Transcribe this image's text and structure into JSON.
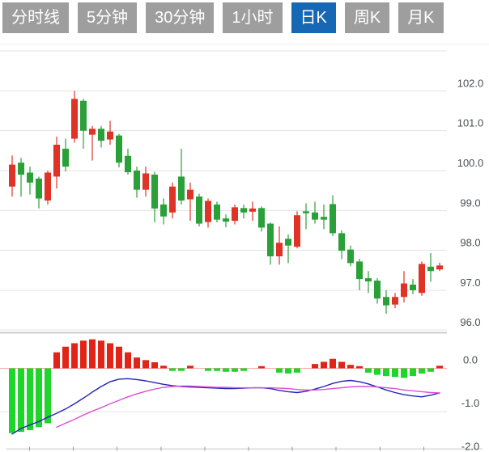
{
  "toolbar": {
    "tabs": [
      {
        "label": "分时线",
        "active": false
      },
      {
        "label": "5分钟",
        "active": false
      },
      {
        "label": "30分钟",
        "active": false
      },
      {
        "label": "1小时",
        "active": false
      },
      {
        "label": "日K",
        "active": true
      },
      {
        "label": "周K",
        "active": false
      },
      {
        "label": "月K",
        "active": false
      }
    ]
  },
  "colors": {
    "up": "#df3327",
    "down": "#2aa038",
    "macd_up": "#e22418",
    "macd_down": "#1fd42a",
    "dif_line": "#2424b4",
    "dea_line": "#d94fd4",
    "tab_bg": "#9e9e9e",
    "tab_active_bg": "#1668b5",
    "tab_text": "#ffffff",
    "grid": "#e3e3e3",
    "pane_border": "#cccccc",
    "zero_line": "#f2aba6",
    "axis_text": "#4a4f54",
    "tick": "#9a9a9a",
    "baseline": "#d9d9d9"
  },
  "chart_data": {
    "type": "candlestick+macd",
    "panes": [
      "daily-candlesticks",
      "macd-indicator"
    ],
    "price_axis": {
      "labels": [
        "102.0",
        "101.0",
        "100.0",
        "99.0",
        "98.0",
        "97.0",
        "96.0"
      ],
      "label_values": [
        102,
        101,
        100,
        99,
        98,
        97,
        96
      ],
      "grid_values": [
        103,
        102,
        101,
        100,
        99,
        98,
        97,
        96
      ],
      "min": 95.8,
      "max": 103.2,
      "position": "right",
      "grid": "on"
    },
    "macd_axis": {
      "labels": [
        "0.0",
        "-1.0",
        "-2.0"
      ],
      "label_values": [
        0,
        -1,
        -2
      ],
      "min": -2.0,
      "max": 0.8,
      "position": "right",
      "grid": "on"
    },
    "candles_ohlc": [
      [
        99.6,
        100.38,
        99.35,
        100.15
      ],
      [
        100.2,
        100.32,
        99.35,
        99.9
      ],
      [
        99.95,
        100.1,
        99.4,
        99.7
      ],
      [
        99.8,
        99.85,
        99.05,
        99.3
      ],
      [
        99.25,
        100.0,
        99.15,
        99.95
      ],
      [
        99.85,
        100.85,
        99.55,
        100.65
      ],
      [
        100.55,
        100.8,
        99.98,
        100.1
      ],
      [
        100.8,
        102.0,
        100.7,
        101.8
      ],
      [
        101.75,
        101.8,
        100.55,
        101.0
      ],
      [
        100.9,
        101.12,
        100.25,
        101.05
      ],
      [
        101.05,
        101.12,
        100.58,
        100.75
      ],
      [
        100.78,
        101.25,
        100.65,
        100.98
      ],
      [
        100.88,
        100.92,
        100.08,
        100.2
      ],
      [
        100.37,
        100.55,
        99.9,
        99.96
      ],
      [
        100.0,
        100.1,
        99.32,
        99.52
      ],
      [
        99.52,
        100.1,
        99.35,
        99.93
      ],
      [
        99.9,
        99.97,
        98.7,
        99.05
      ],
      [
        99.15,
        99.3,
        98.65,
        98.85
      ],
      [
        98.95,
        99.7,
        98.8,
        99.6
      ],
      [
        99.85,
        100.55,
        99.15,
        99.25
      ],
      [
        99.28,
        99.7,
        98.74,
        99.52
      ],
      [
        99.35,
        99.42,
        98.6,
        98.67
      ],
      [
        98.71,
        99.3,
        98.57,
        99.24
      ],
      [
        99.15,
        99.22,
        98.7,
        98.77
      ],
      [
        98.8,
        98.9,
        98.58,
        98.72
      ],
      [
        98.74,
        99.15,
        98.65,
        99.08
      ],
      [
        99.06,
        99.15,
        98.8,
        98.95
      ],
      [
        98.97,
        99.22,
        98.74,
        99.05
      ],
      [
        99.06,
        99.1,
        98.47,
        98.57
      ],
      [
        98.67,
        98.7,
        97.64,
        97.85
      ],
      [
        97.85,
        98.6,
        97.64,
        98.19
      ],
      [
        98.29,
        98.4,
        97.68,
        98.12
      ],
      [
        98.09,
        98.98,
        98.05,
        98.88
      ],
      [
        98.98,
        99.18,
        98.53,
        98.93
      ],
      [
        98.95,
        99.22,
        98.67,
        98.77
      ],
      [
        98.84,
        99.15,
        98.53,
        98.77
      ],
      [
        99.16,
        99.38,
        98.36,
        98.43
      ],
      [
        98.43,
        98.5,
        97.78,
        97.99
      ],
      [
        98.02,
        98.12,
        97.6,
        97.68
      ],
      [
        97.72,
        97.79,
        97.0,
        97.28
      ],
      [
        97.3,
        97.48,
        96.93,
        97.22
      ],
      [
        97.24,
        97.3,
        96.66,
        96.79
      ],
      [
        96.83,
        97.0,
        96.41,
        96.62
      ],
      [
        96.64,
        96.93,
        96.55,
        96.83
      ],
      [
        96.83,
        97.48,
        96.69,
        97.17
      ],
      [
        97.14,
        97.28,
        96.9,
        97.0
      ],
      [
        96.93,
        97.72,
        96.86,
        97.66
      ],
      [
        97.59,
        97.93,
        97.21,
        97.48
      ],
      [
        97.52,
        97.69,
        97.48,
        97.62
      ]
    ],
    "macd": {
      "histogram": [
        -1.5,
        -1.47,
        -1.43,
        -1.36,
        -1.27,
        0.37,
        0.5,
        0.58,
        0.64,
        0.67,
        0.64,
        0.58,
        0.5,
        0.37,
        0.25,
        0.19,
        0.14,
        0.06,
        -0.06,
        -0.06,
        0.06,
        0.0,
        -0.06,
        -0.06,
        -0.08,
        -0.08,
        -0.06,
        0.0,
        0.05,
        0.0,
        -0.1,
        -0.12,
        -0.1,
        0.0,
        0.1,
        0.15,
        0.22,
        0.15,
        0.08,
        0.05,
        -0.1,
        -0.15,
        -0.18,
        -0.2,
        -0.22,
        -0.18,
        -0.12,
        -0.08,
        0.06
      ],
      "dif": [
        -1.52,
        -1.39,
        -1.31,
        -1.23,
        -1.13,
        -1.04,
        -0.94,
        -0.82,
        -0.69,
        -0.55,
        -0.42,
        -0.31,
        -0.25,
        -0.24,
        -0.26,
        -0.29,
        -0.33,
        -0.37,
        -0.4,
        -0.42,
        -0.43,
        -0.44,
        -0.45,
        -0.46,
        -0.47,
        -0.47,
        -0.46,
        -0.45,
        -0.45,
        -0.47,
        -0.51,
        -0.54,
        -0.56,
        -0.53,
        -0.48,
        -0.42,
        -0.35,
        -0.3,
        -0.28,
        -0.31,
        -0.36,
        -0.43,
        -0.5,
        -0.56,
        -0.61,
        -0.64,
        -0.66,
        -0.62,
        -0.57
      ],
      "dea": [
        null,
        null,
        null,
        null,
        null,
        -1.36,
        -1.27,
        -1.18,
        -1.08,
        -0.99,
        -0.91,
        -0.82,
        -0.74,
        -0.66,
        -0.59,
        -0.53,
        -0.48,
        -0.44,
        -0.42,
        -0.41,
        -0.41,
        -0.42,
        -0.43,
        -0.44,
        -0.44,
        -0.45,
        -0.45,
        -0.45,
        -0.45,
        -0.45,
        -0.46,
        -0.47,
        -0.49,
        -0.5,
        -0.5,
        -0.49,
        -0.47,
        -0.45,
        -0.43,
        -0.42,
        -0.42,
        -0.43,
        -0.45,
        -0.47,
        -0.5,
        -0.52,
        -0.54,
        -0.56,
        -0.57
      ]
    }
  }
}
